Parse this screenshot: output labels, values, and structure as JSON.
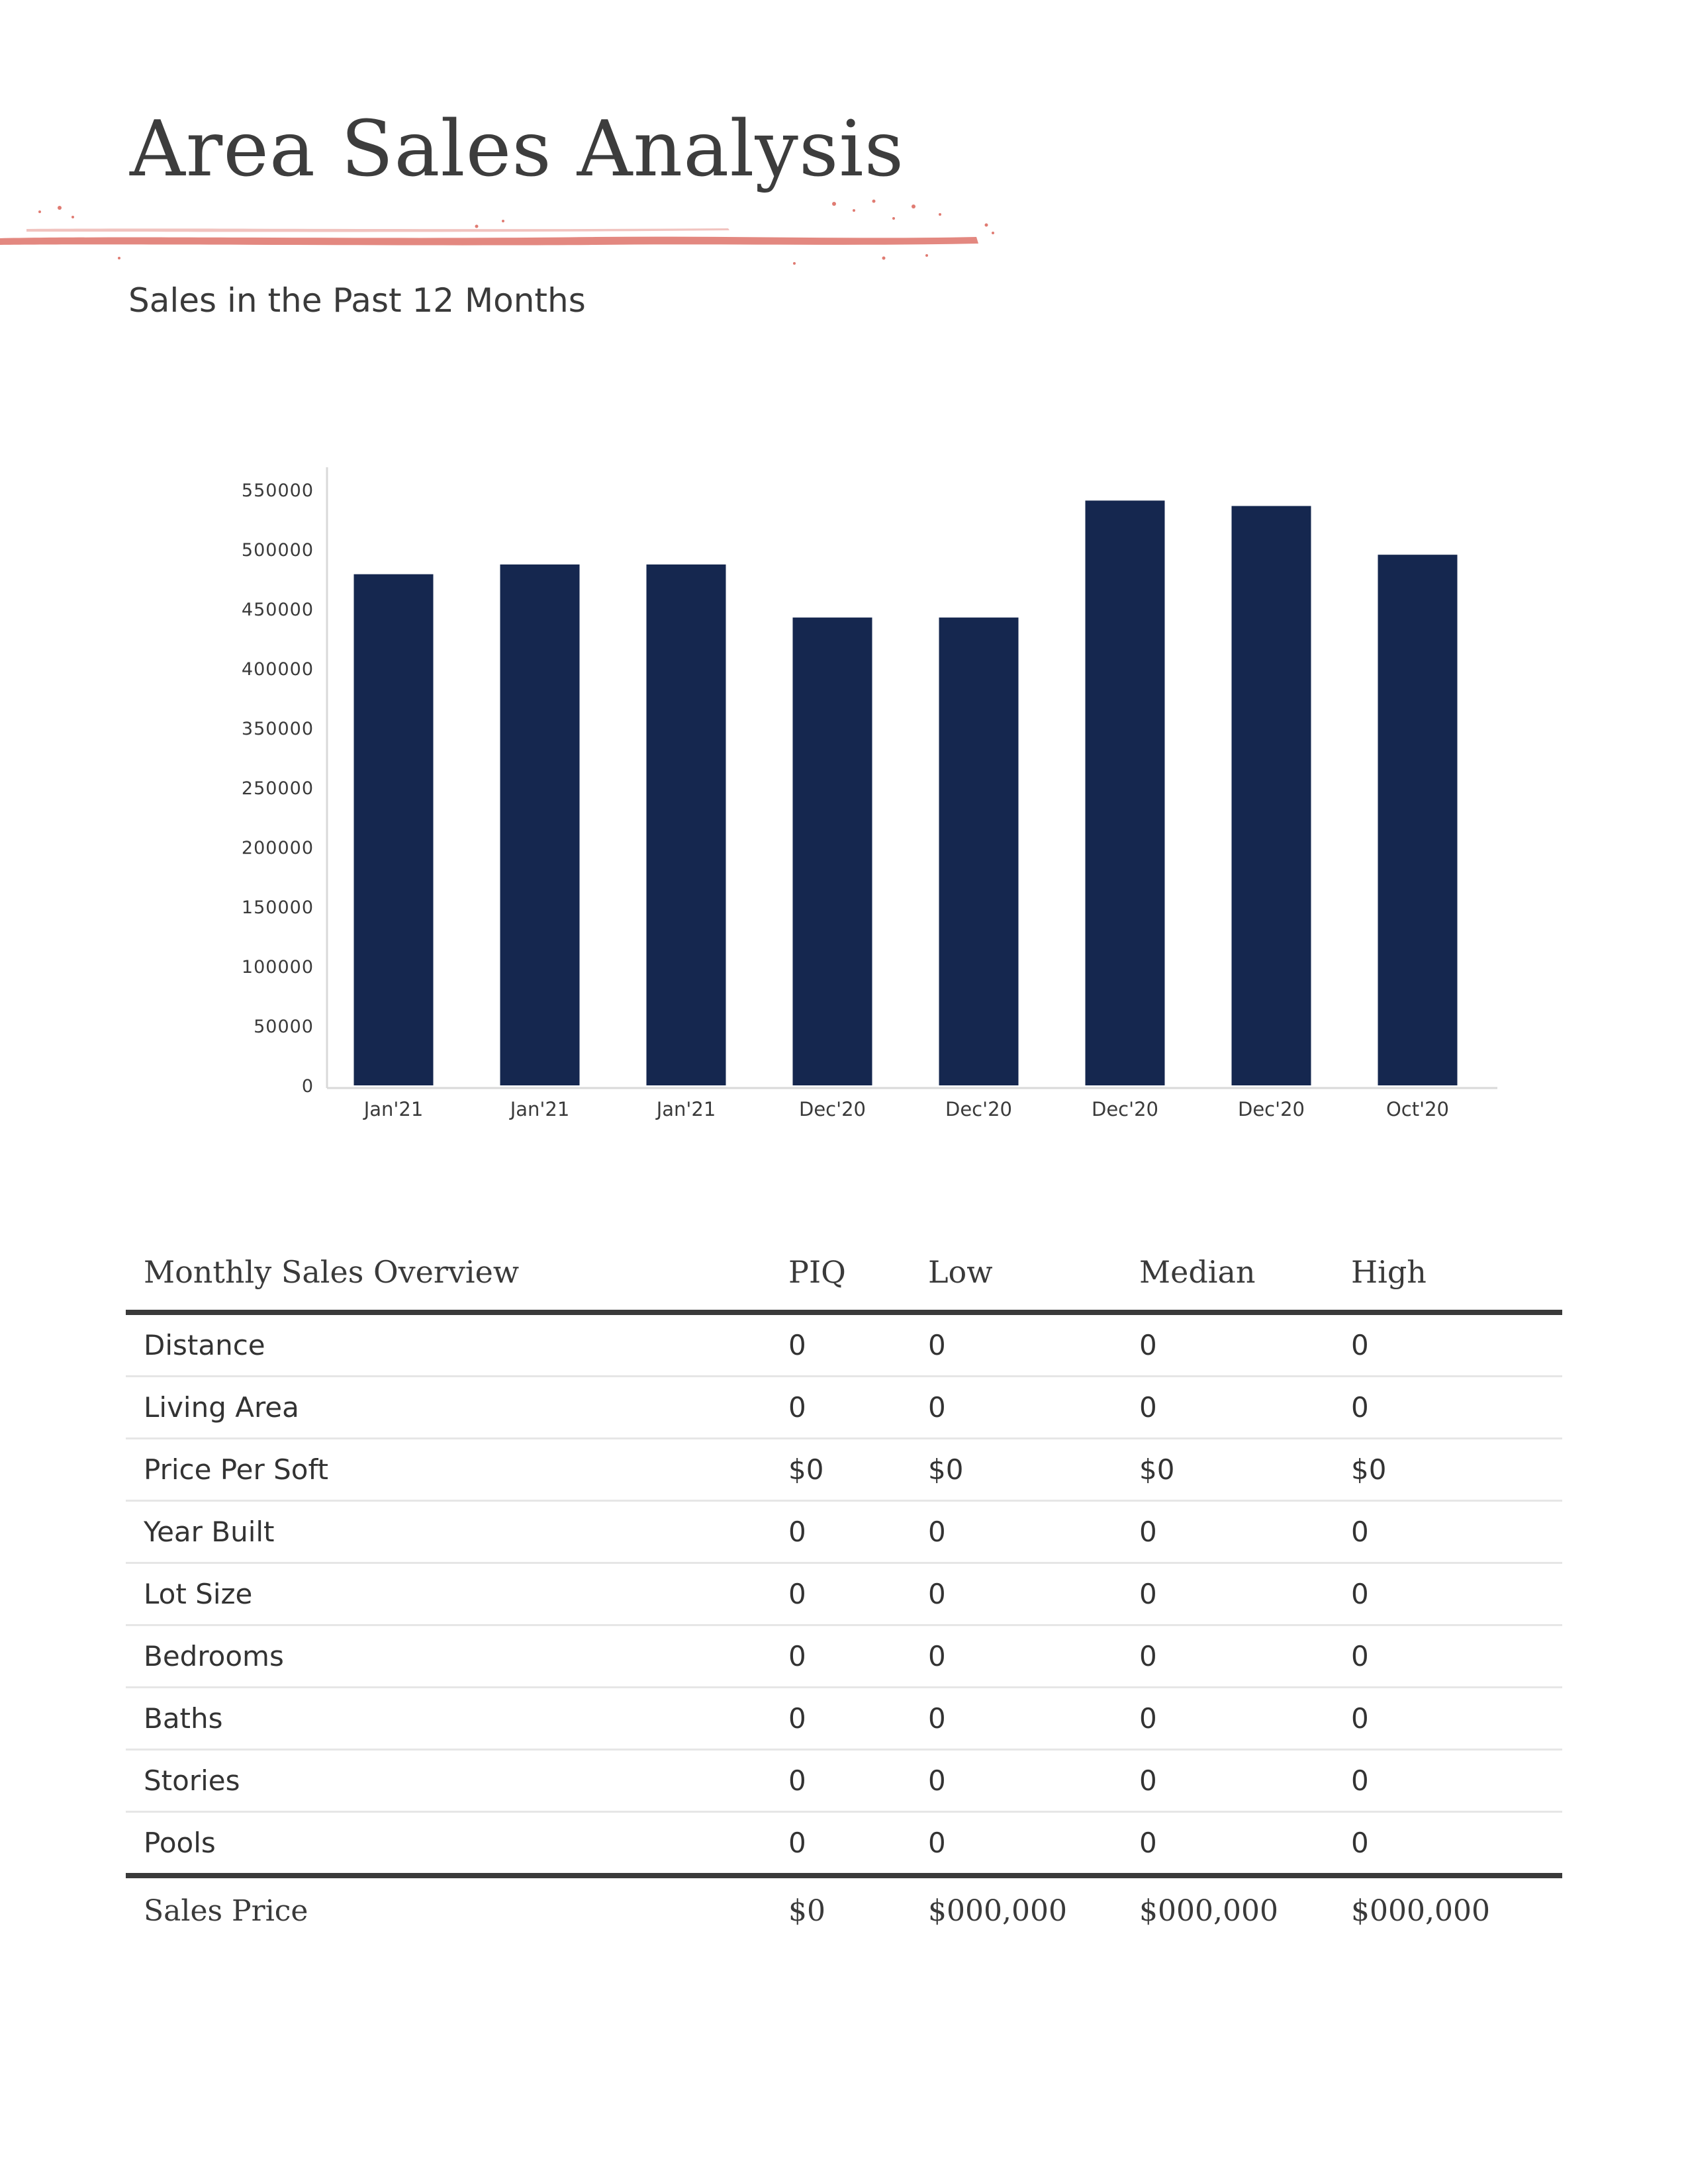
{
  "header": {
    "title": "Area Sales Analysis",
    "subtitle": "Sales in the Past 12 Months",
    "accent_color": "#e07b72"
  },
  "chart_data": {
    "type": "bar",
    "title": "",
    "xlabel": "",
    "ylabel": "",
    "categories": [
      "Jan'21",
      "Jan'21",
      "Jan'21",
      "Dec'20",
      "Dec'20",
      "Dec'20",
      "Dec'20",
      "Oct'20"
    ],
    "values": [
      472000,
      481000,
      481000,
      432000,
      432000,
      540000,
      535000,
      490000
    ],
    "y_ticks": [
      0,
      50000,
      100000,
      150000,
      200000,
      250000,
      350000,
      400000,
      450000,
      500000,
      550000
    ],
    "grid": false,
    "legend": "none",
    "bar_color": "#15274f"
  },
  "table": {
    "headers": [
      "Monthly Sales Overview",
      "PIQ",
      "Low",
      "Median",
      "High"
    ],
    "rows": [
      [
        "Distance",
        "0",
        "0",
        "0",
        "0"
      ],
      [
        "Living Area",
        "0",
        "0",
        "0",
        "0"
      ],
      [
        "Price Per Soft",
        "$0",
        "$0",
        "$0",
        "$0"
      ],
      [
        "Year Built",
        "0",
        "0",
        "0",
        "0"
      ],
      [
        "Lot Size",
        "0",
        "0",
        "0",
        "0"
      ],
      [
        "Bedrooms",
        "0",
        "0",
        "0",
        "0"
      ],
      [
        "Baths",
        "0",
        "0",
        "0",
        "0"
      ],
      [
        "Stories",
        "0",
        "0",
        "0",
        "0"
      ],
      [
        "Pools",
        "0",
        "0",
        "0",
        "0"
      ]
    ],
    "footer": [
      "Sales Price",
      "$0",
      "$000,000",
      "$000,000",
      "$000,000"
    ]
  }
}
